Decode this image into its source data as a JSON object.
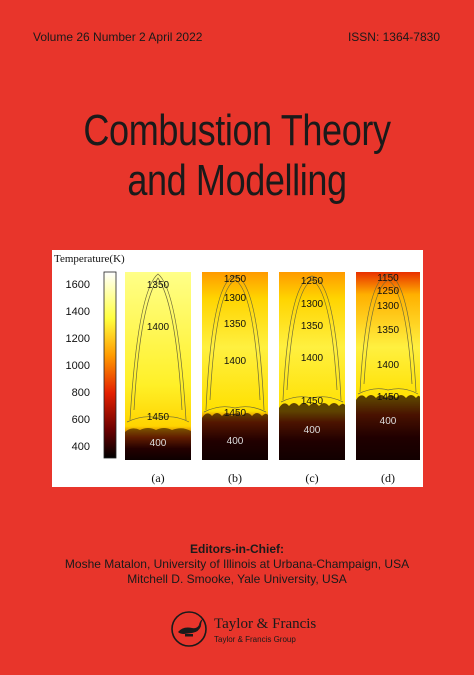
{
  "header": {
    "issue": "Volume 26  Number 2  April  2022",
    "issn": "ISSN: 1364-7830"
  },
  "title": {
    "line1": "Combustion Theory",
    "line2": "and Modelling"
  },
  "figure": {
    "colorbar_label": "Temperature(K)",
    "colorbar_ticks": [
      "1600",
      "1400",
      "1200",
      "1000",
      "800",
      "600",
      "400"
    ],
    "panels": [
      {
        "letter": "(a)",
        "contours": [
          "1350",
          "1400",
          "1450",
          "400"
        ]
      },
      {
        "letter": "(b)",
        "contours": [
          "1250",
          "1300",
          "1350",
          "1400",
          "1450",
          "400"
        ]
      },
      {
        "letter": "(c)",
        "contours": [
          "1250",
          "1300",
          "1350",
          "1400",
          "1450",
          "400"
        ]
      },
      {
        "letter": "(d)",
        "contours": [
          "1150",
          "1250",
          "1300",
          "1350",
          "1400",
          "1450",
          "400"
        ]
      }
    ]
  },
  "editors": {
    "heading": "Editors-in-Chief:",
    "editor1": "Moshe Matalon, University of Illinois at Urbana-Champaign, USA",
    "editor2": "Mitchell D. Smooke, Yale University, USA"
  },
  "publisher": {
    "name": "Taylor & Francis",
    "group": "Taylor & Francis Group"
  }
}
